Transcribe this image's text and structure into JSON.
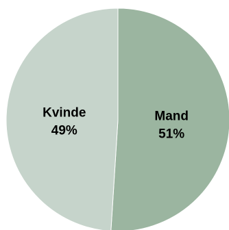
{
  "chart_data": {
    "type": "pie",
    "title": "",
    "slices": [
      {
        "label": "Mand",
        "value": 51,
        "value_label": "51%",
        "color": "#9bb5a0"
      },
      {
        "label": "Kvinde",
        "value": 49,
        "value_label": "49%",
        "color": "#c6d4cb"
      }
    ],
    "start_angle_deg": 0,
    "direction": "clockwise",
    "slice_separator_color": "#ffffff"
  }
}
